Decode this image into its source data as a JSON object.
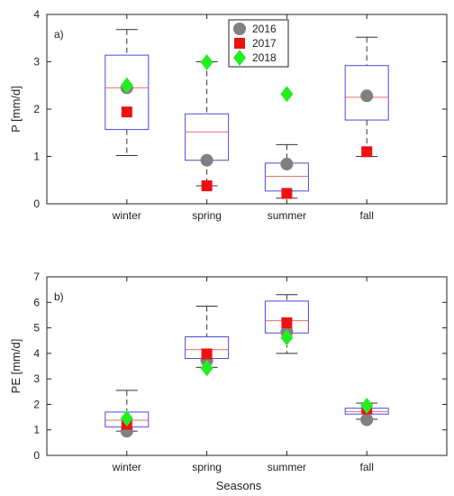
{
  "xlabel": "Seasons",
  "colors": {
    "box": "#4a4adb",
    "median": "#e07070",
    "whisker": "#333333",
    "y2016": "#808080",
    "y2017": "#ee1111",
    "y2018": "#22ee22"
  },
  "legend": [
    "2016",
    "2017",
    "2018"
  ],
  "chart_data": [
    {
      "type": "box",
      "panel_label": "a)",
      "ylabel": "P [mm/d]",
      "ylim": [
        0,
        4
      ],
      "yticks": [
        0,
        1,
        2,
        3,
        4
      ],
      "categories": [
        "winter",
        "spring",
        "summer",
        "fall"
      ],
      "boxes": [
        {
          "min": 1.02,
          "q1": 1.57,
          "median": 2.45,
          "q3": 3.14,
          "max": 3.68
        },
        {
          "min": 0.38,
          "q1": 0.92,
          "median": 1.52,
          "q3": 1.9,
          "max": 3.0
        },
        {
          "min": 0.12,
          "q1": 0.27,
          "median": 0.58,
          "q3": 0.86,
          "max": 1.25
        },
        {
          "min": 1.0,
          "q1": 1.77,
          "median": 2.25,
          "q3": 2.92,
          "max": 3.52
        }
      ],
      "series": [
        {
          "name": "2016",
          "marker": "circle",
          "values": [
            2.45,
            0.92,
            0.84,
            2.28
          ]
        },
        {
          "name": "2017",
          "marker": "square",
          "values": [
            1.94,
            0.38,
            0.22,
            1.1
          ]
        },
        {
          "name": "2018",
          "marker": "diamond",
          "values": [
            2.5,
            2.99,
            2.32,
            null
          ]
        }
      ],
      "legend_position": "top-center"
    },
    {
      "type": "box",
      "panel_label": "b)",
      "ylabel": "PE [mm/d]",
      "ylim": [
        0,
        7
      ],
      "yticks": [
        0,
        1,
        2,
        3,
        4,
        5,
        6,
        7
      ],
      "categories": [
        "winter",
        "spring",
        "summer",
        "fall"
      ],
      "boxes": [
        {
          "min": 0.95,
          "q1": 1.12,
          "median": 1.38,
          "q3": 1.7,
          "max": 2.55
        },
        {
          "min": 3.45,
          "q1": 3.8,
          "median": 4.15,
          "q3": 4.65,
          "max": 5.85
        },
        {
          "min": 4.0,
          "q1": 4.8,
          "median": 5.28,
          "q3": 6.05,
          "max": 6.3
        },
        {
          "min": 1.42,
          "q1": 1.62,
          "median": 1.72,
          "q3": 1.85,
          "max": 2.05
        }
      ],
      "series": [
        {
          "name": "2016",
          "marker": "circle",
          "values": [
            0.95,
            3.72,
            4.85,
            1.4
          ]
        },
        {
          "name": "2017",
          "marker": "square",
          "values": [
            1.22,
            3.98,
            5.2,
            1.82
          ]
        },
        {
          "name": "2018",
          "marker": "diamond",
          "values": [
            1.45,
            3.42,
            4.62,
            1.95
          ]
        }
      ]
    }
  ]
}
